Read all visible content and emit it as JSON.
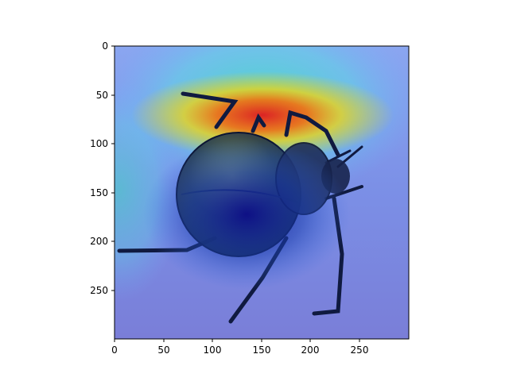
{
  "figure": {
    "x_axis": {
      "lim": [
        0,
        300
      ],
      "ticks": [
        0,
        50,
        100,
        150,
        200,
        250
      ],
      "tick_labels": [
        "0",
        "50",
        "100",
        "150",
        "200",
        "250"
      ]
    },
    "y_axis": {
      "lim": [
        300,
        0
      ],
      "inverted": true,
      "ticks": [
        0,
        50,
        100,
        150,
        200,
        250
      ],
      "tick_labels": [
        "0",
        "50",
        "100",
        "150",
        "200",
        "250"
      ]
    },
    "image": {
      "subject": "beetle photo with attention heatmap overlay",
      "colormap": "jet",
      "hot_region": "band across the top of the beetle, behind the antennae and front legs",
      "cold_region": "beetle body and lower legs"
    }
  }
}
